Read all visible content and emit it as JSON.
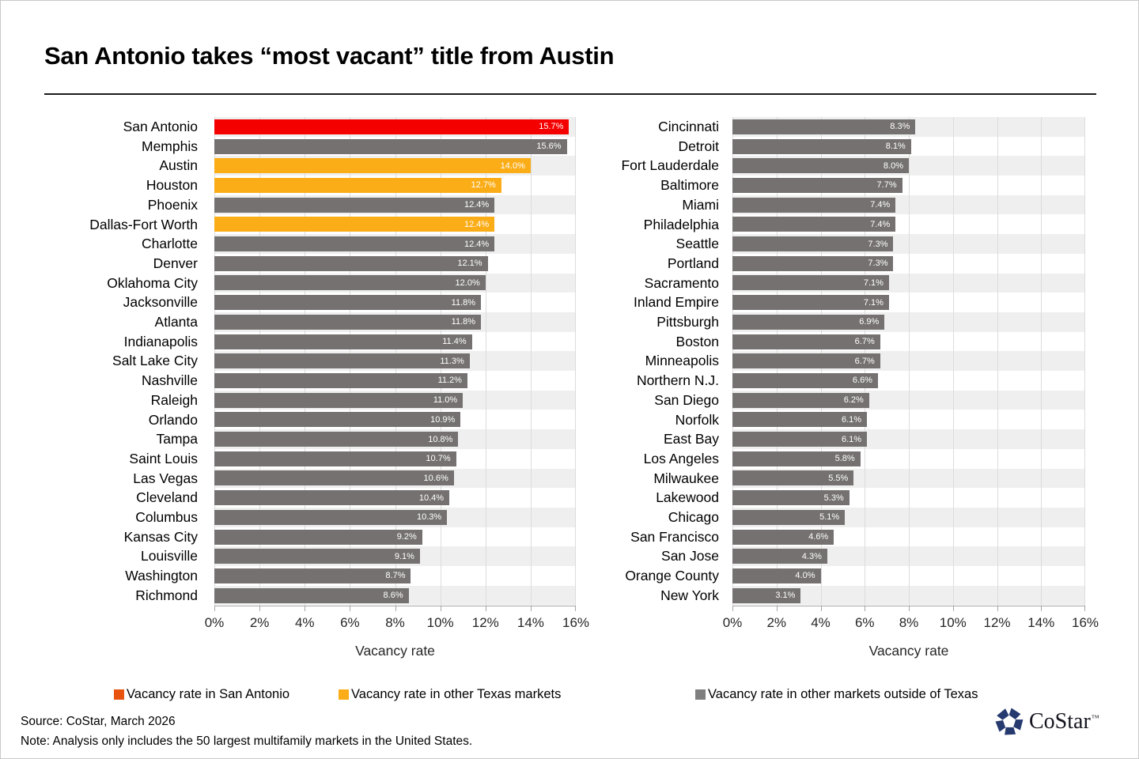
{
  "title": "San Antonio takes “most vacant” title from Austin",
  "legend": [
    {
      "label": "Vacancy rate in San Antonio",
      "color": "#e8530f"
    },
    {
      "label": "Vacancy rate in other Texas markets",
      "color": "#fbad18"
    },
    {
      "label": "Vacancy rate in other markets outside of Texas",
      "color": "#7f7f7f"
    }
  ],
  "colors": {
    "san_antonio": "#f40000",
    "texas": "#fbad18",
    "other": "#757171",
    "stripe": "#efefef",
    "gridline": "#dcdcdc",
    "axis": "#a6a6a6",
    "bar_label_text": "#ffffff"
  },
  "chart_data": [
    {
      "type": "bar",
      "orientation": "horizontal",
      "title": "",
      "xlabel": "Vacancy rate",
      "xlim": [
        0,
        16
      ],
      "tick_labels": [
        "0%",
        "2%",
        "4%",
        "6%",
        "8%",
        "10%",
        "12%",
        "14%",
        "16%"
      ],
      "grid": true,
      "categories": [
        "San Antonio",
        "Memphis",
        "Austin",
        "Houston",
        "Phoenix",
        "Dallas-Fort Worth",
        "Charlotte",
        "Denver",
        "Oklahoma City",
        "Jacksonville",
        "Atlanta",
        "Indianapolis",
        "Salt Lake City",
        "Nashville",
        "Raleigh",
        "Orlando",
        "Tampa",
        "Saint Louis",
        "Las Vegas",
        "Cleveland",
        "Columbus",
        "Kansas City",
        "Louisville",
        "Washington",
        "Richmond"
      ],
      "values": [
        15.7,
        15.6,
        14.0,
        12.7,
        12.4,
        12.4,
        12.4,
        12.1,
        12.0,
        11.8,
        11.8,
        11.4,
        11.3,
        11.2,
        11.0,
        10.9,
        10.8,
        10.7,
        10.6,
        10.4,
        10.3,
        9.2,
        9.1,
        8.7,
        8.6
      ],
      "data_labels": [
        "15.7%",
        "15.6%",
        "14.0%",
        "12.7%",
        "12.4%",
        "12.4%",
        "12.4%",
        "12.1%",
        "12.0%",
        "11.8%",
        "11.8%",
        "11.4%",
        "11.3%",
        "11.2%",
        "11.0%",
        "10.9%",
        "10.8%",
        "10.7%",
        "10.6%",
        "10.4%",
        "10.3%",
        "9.2%",
        "9.1%",
        "8.7%",
        "8.6%"
      ],
      "groups": [
        "san_antonio",
        "other",
        "texas",
        "texas",
        "other",
        "texas",
        "other",
        "other",
        "other",
        "other",
        "other",
        "other",
        "other",
        "other",
        "other",
        "other",
        "other",
        "other",
        "other",
        "other",
        "other",
        "other",
        "other",
        "other",
        "other"
      ]
    },
    {
      "type": "bar",
      "orientation": "horizontal",
      "title": "",
      "xlabel": "Vacancy rate",
      "xlim": [
        0,
        16
      ],
      "tick_labels": [
        "0%",
        "2%",
        "4%",
        "6%",
        "8%",
        "10%",
        "12%",
        "14%",
        "16%"
      ],
      "grid": true,
      "categories": [
        "Cincinnati",
        "Detroit",
        "Fort Lauderdale",
        "Baltimore",
        "Miami",
        "Philadelphia",
        "Seattle",
        "Portland",
        "Sacramento",
        "Inland Empire",
        "Pittsburgh",
        "Boston",
        "Minneapolis",
        "Northern N.J.",
        "San Diego",
        "Norfolk",
        "East Bay",
        "Los Angeles",
        "Milwaukee",
        "Lakewood",
        "Chicago",
        "San Francisco",
        "San Jose",
        "Orange County",
        "New York"
      ],
      "values": [
        8.3,
        8.1,
        8.0,
        7.7,
        7.4,
        7.4,
        7.3,
        7.3,
        7.1,
        7.1,
        6.9,
        6.7,
        6.7,
        6.6,
        6.2,
        6.1,
        6.1,
        5.8,
        5.5,
        5.3,
        5.1,
        4.6,
        4.3,
        4.0,
        3.1
      ],
      "data_labels": [
        "8.3%",
        "8.1%",
        "8.0%",
        "7.7%",
        "7.4%",
        "7.4%",
        "7.3%",
        "7.3%",
        "7.1%",
        "7.1%",
        "6.9%",
        "6.7%",
        "6.7%",
        "6.6%",
        "6.2%",
        "6.1%",
        "6.1%",
        "5.8%",
        "5.5%",
        "5.3%",
        "5.1%",
        "4.6%",
        "4.3%",
        "4.0%",
        "3.1%"
      ],
      "groups": [
        "other",
        "other",
        "other",
        "other",
        "other",
        "other",
        "other",
        "other",
        "other",
        "other",
        "other",
        "other",
        "other",
        "other",
        "other",
        "other",
        "other",
        "other",
        "other",
        "other",
        "other",
        "other",
        "other",
        "other",
        "other"
      ]
    }
  ],
  "footer": {
    "source": "Source: CoStar, March 2026",
    "note": "Note: Analysis only includes the 50 largest multifamily markets in the United States.",
    "logo_text": "CoStar",
    "logo_tm": "™"
  }
}
